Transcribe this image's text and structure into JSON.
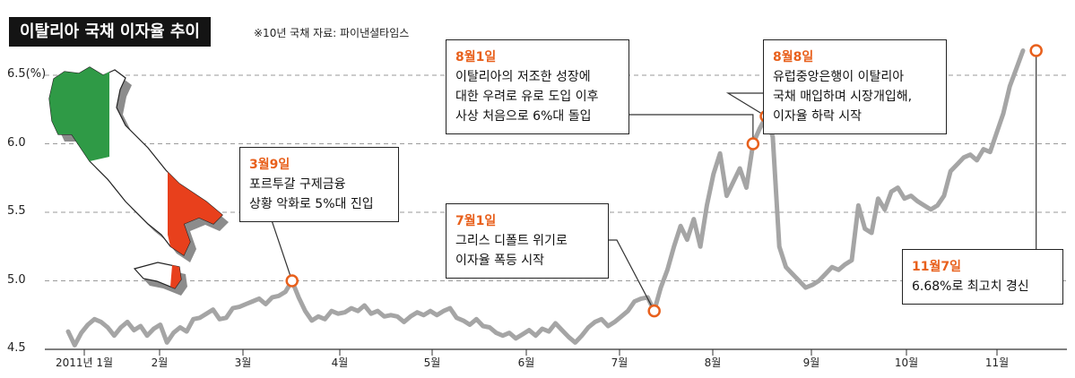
{
  "header": {
    "title": "이탈리아 국채 이자율 추이",
    "source": "※10년 국채  자료: 파이낸셜타임스"
  },
  "colors": {
    "line": "#a5a5a5",
    "marker": "#e8601c",
    "italy_green": "#2f9a46",
    "italy_red": "#e8401c",
    "shadow": "#8c8c8c"
  },
  "chart_data": {
    "type": "line",
    "title": "이탈리아 국채 이자율 추이",
    "ylabel": "(%)",
    "ylim": [
      4.5,
      6.5
    ],
    "yticks": [
      "4.5",
      "5.0",
      "5.5",
      "6.0",
      "6.5"
    ],
    "ytick_unit": "(%)",
    "xticks": [
      "2011년 1월",
      "2월",
      "3월",
      "4월",
      "5월",
      "6월",
      "7월",
      "8월",
      "9월",
      "10월",
      "11월"
    ],
    "grid": "horizontal dashed",
    "series": [
      {
        "values": [
          4.63,
          4.53,
          4.62,
          4.68,
          4.72,
          4.7,
          4.66,
          4.6,
          4.66,
          4.7,
          4.64,
          4.67,
          4.6,
          4.65,
          4.68,
          4.55,
          4.62,
          4.66,
          4.63,
          4.72,
          4.73,
          4.76,
          4.79,
          4.72,
          4.73,
          4.8,
          4.81,
          4.83,
          4.85,
          4.87,
          4.83,
          4.88,
          4.89,
          4.92,
          5.0,
          4.88,
          4.78,
          4.71,
          4.74,
          4.72,
          4.78,
          4.76,
          4.77,
          4.8,
          4.78,
          4.82,
          4.76,
          4.78,
          4.74,
          4.75,
          4.74,
          4.7,
          4.74,
          4.77,
          4.75,
          4.78,
          4.75,
          4.78,
          4.8,
          4.73,
          4.71,
          4.68,
          4.72,
          4.67,
          4.66,
          4.62,
          4.6,
          4.62,
          4.58,
          4.61,
          4.64,
          4.6,
          4.65,
          4.63,
          4.69,
          4.64,
          4.59,
          4.55,
          4.6,
          4.66,
          4.7,
          4.72,
          4.67,
          4.7,
          4.74,
          4.78,
          4.85,
          4.87,
          4.88,
          4.78,
          4.95,
          5.08,
          5.25,
          5.4,
          5.3,
          5.45,
          5.25,
          5.55,
          5.78,
          5.93,
          5.62,
          5.72,
          5.82,
          5.68,
          6.0,
          6.11,
          6.2,
          6.05,
          5.25,
          5.1,
          5.05,
          5.0,
          4.95,
          4.97,
          5.0,
          5.05,
          5.1,
          5.08,
          5.12,
          5.15,
          5.55,
          5.38,
          5.35,
          5.6,
          5.52,
          5.65,
          5.68,
          5.6,
          5.62,
          5.58,
          5.55,
          5.52,
          5.55,
          5.62,
          5.8,
          5.85,
          5.9,
          5.92,
          5.88,
          5.96,
          5.94,
          6.08,
          6.22,
          6.42,
          6.55,
          6.68
        ]
      }
    ],
    "annotations": [
      {
        "date": "3월9일",
        "text": "포르투갈 구제금융\n상황 악화로 5%대 진입",
        "value": 5.0
      },
      {
        "date": "7월1일",
        "text": "그리스 디폴트 위기로\n이자율 폭등 시작",
        "value": 4.78
      },
      {
        "date": "8월1일",
        "text": "이탈리아의 저조한 성장에\n대한 우려로 유로 도입 이후\n사상 처음으로 6%대 돌입",
        "value": 6.0
      },
      {
        "date": "8월8일",
        "text": "유럽중앙은행이 이탈리아\n국채 매입하며 시장개입해,\n이자율 하락 시작",
        "value": 6.2
      },
      {
        "date": "11월7일",
        "text": "6.68%로 최고치 경신",
        "value": 6.68
      }
    ]
  }
}
